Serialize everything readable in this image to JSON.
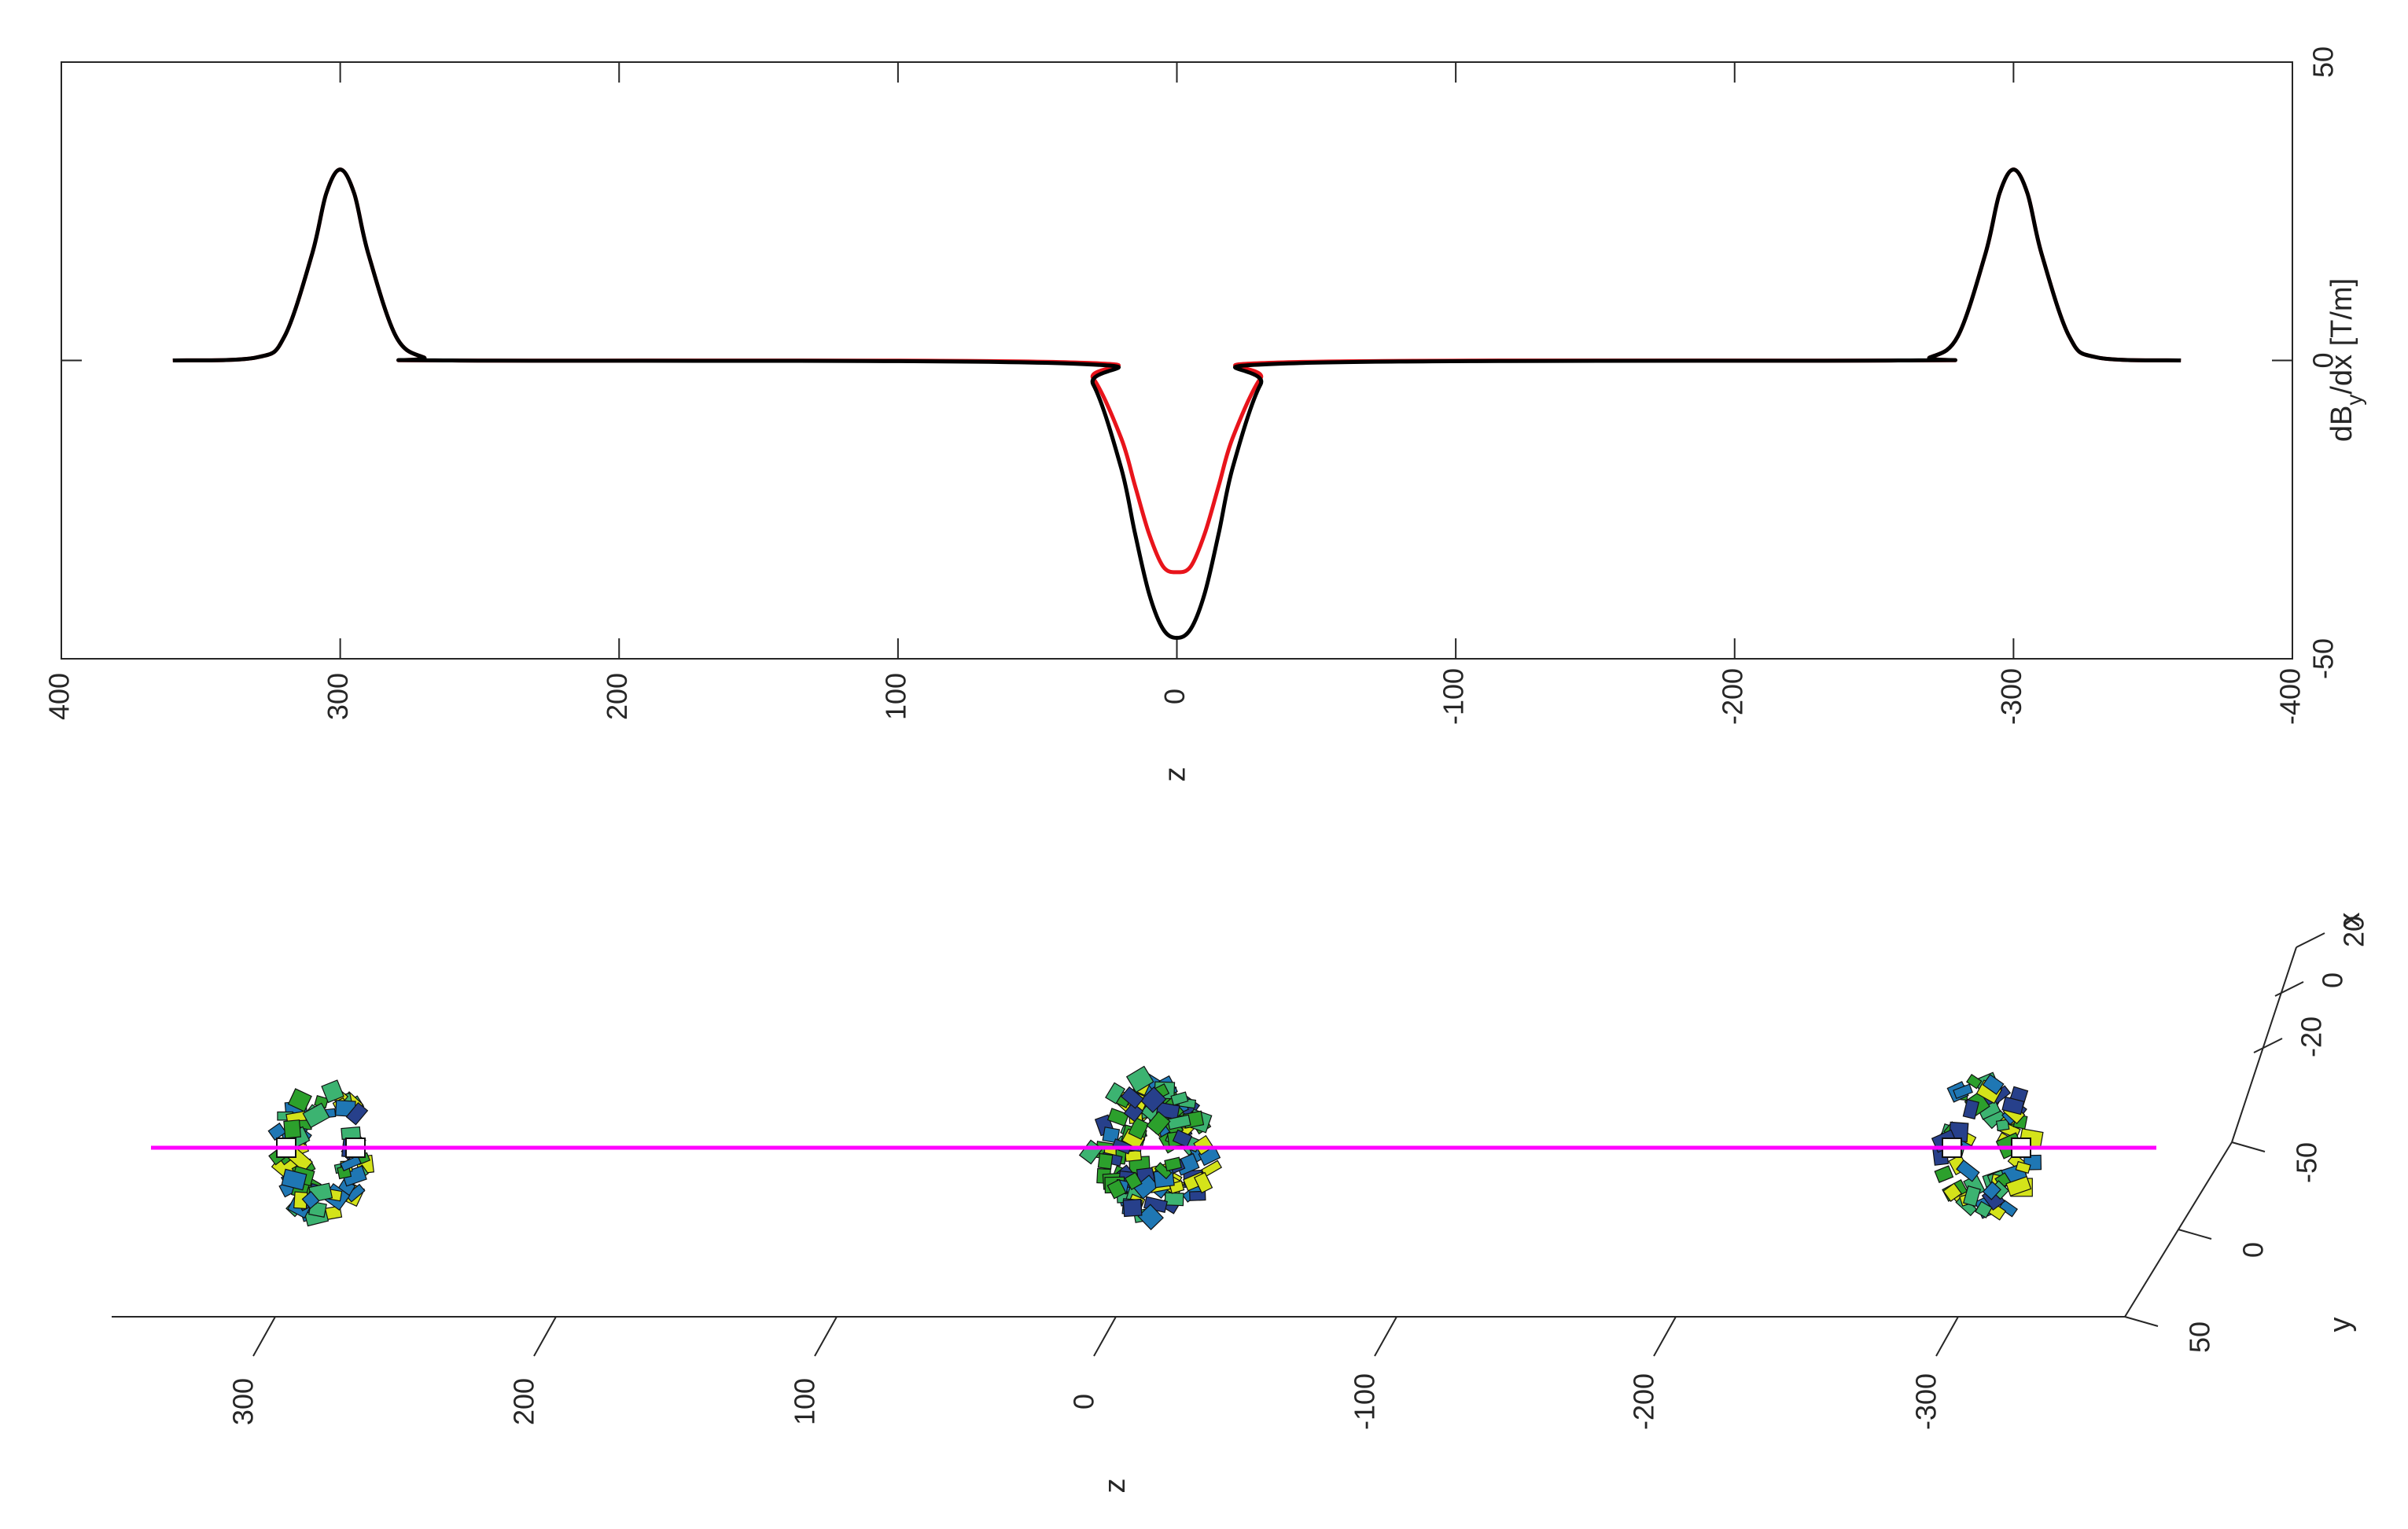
{
  "chart_data": [
    {
      "type": "line",
      "xlabel": "z",
      "ylabel": "dB_y/dx [T/m]",
      "xlim": [
        400,
        -400
      ],
      "ylim": [
        -50,
        50
      ],
      "x_ticks": [
        400,
        300,
        200,
        100,
        0,
        -100,
        -200,
        -300,
        -400
      ],
      "x_tick_labels": [
        "400",
        "300",
        "200",
        "100",
        "0",
        "-100",
        "-200",
        "-300",
        "-400"
      ],
      "y_ticks": [
        -50,
        0,
        50
      ],
      "y_tick_labels": [
        "-50",
        "0",
        "50"
      ],
      "grid": false,
      "series": [
        {
          "color": "#e8141b",
          "z": [
            360,
            330,
            320,
            310,
            305,
            300,
            295,
            290,
            280,
            270,
            260,
            40,
            30,
            20,
            15,
            10,
            5,
            0,
            -5,
            -10,
            -15,
            -20,
            -30,
            -40,
            -260,
            -270,
            -280,
            -290,
            -295,
            -300,
            -305,
            -310,
            -320,
            -330,
            -360
          ],
          "dBdx": [
            0,
            0.5,
            4,
            18,
            28,
            32,
            28,
            18,
            4,
            0.5,
            0,
            -0.3,
            -3,
            -13,
            -21,
            -29,
            -34.5,
            -35.5,
            -34.5,
            -29,
            -21,
            -13,
            -3,
            -0.3,
            0,
            0.5,
            4,
            18,
            28,
            32,
            28,
            18,
            4,
            0.5,
            0
          ]
        },
        {
          "color": "#000000",
          "z": [
            360,
            330,
            320,
            310,
            305,
            300,
            295,
            290,
            280,
            270,
            260,
            40,
            30,
            20,
            15,
            10,
            5,
            0,
            -5,
            -10,
            -15,
            -20,
            -30,
            -40,
            -260,
            -270,
            -280,
            -290,
            -295,
            -300,
            -305,
            -310,
            -320,
            -330,
            -360
          ],
          "dBdx": [
            0,
            0.5,
            4,
            18,
            28,
            32,
            28,
            18,
            4,
            0.5,
            0,
            -0.5,
            -4,
            -18,
            -29,
            -39,
            -45,
            -46.5,
            -45,
            -39,
            -29,
            -18,
            -4,
            -0.5,
            0,
            0.5,
            4,
            18,
            28,
            32,
            28,
            18,
            4,
            0.5,
            0
          ]
        }
      ]
    },
    {
      "type": "scatter",
      "view": "3d",
      "xlabel": "z",
      "ylabel": "y",
      "zlabel": "x",
      "z_ticks": [
        300,
        200,
        100,
        0,
        -100,
        -200,
        -300
      ],
      "z_tick_labels": [
        "300",
        "200",
        "100",
        "0",
        "-100",
        "-200",
        "-300"
      ],
      "y_ticks": [
        -50,
        0,
        50
      ],
      "y_tick_labels": [
        "-50",
        "0",
        "50"
      ],
      "x_ticks": [
        -20,
        0,
        20
      ],
      "x_tick_labels": [
        "-20",
        "0",
        "20"
      ],
      "beam_line": {
        "color": "#ff00ff",
        "z_range": [
          345,
          -355
        ]
      },
      "magnets": [
        {
          "z": 300,
          "size": "small"
        },
        {
          "z": 0,
          "size": "large"
        },
        {
          "z": -300,
          "size": "small"
        }
      ],
      "block_colors": [
        "#2ca02c",
        "#1f77b4",
        "#d4e31a",
        "#27408b",
        "#3cb371"
      ]
    }
  ]
}
